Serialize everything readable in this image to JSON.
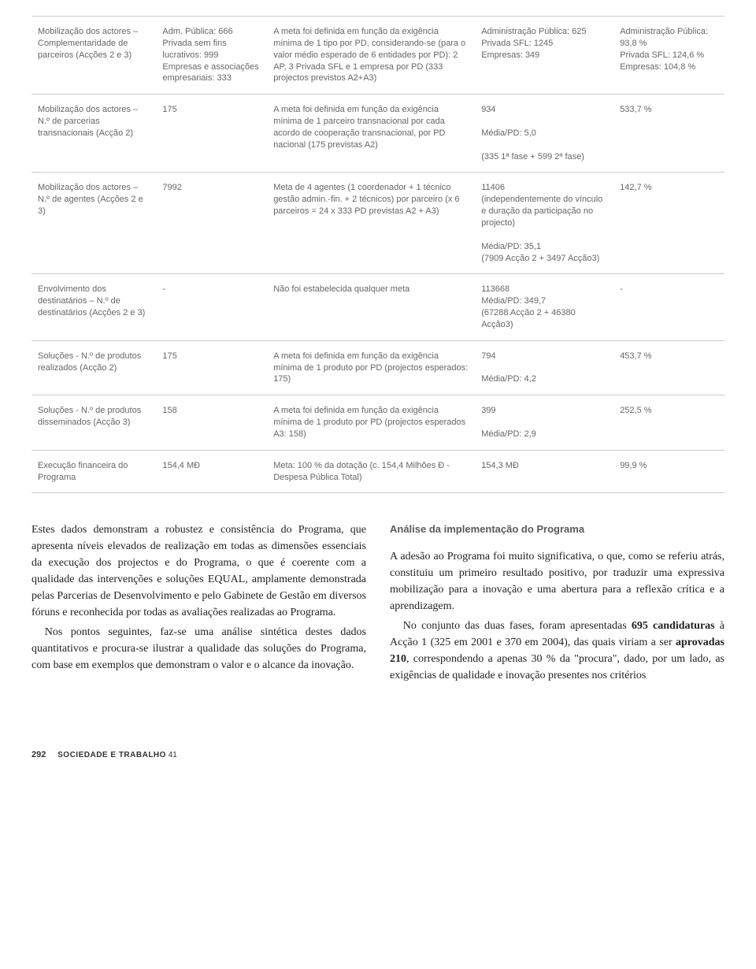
{
  "table": {
    "rows": [
      {
        "c1": "Mobilização dos actores – Complementaridade de parceiros (Acções 2 e 3)",
        "c2": "Adm. Pública: 666\nPrivada sem fins lucrativos: 999\nEmpresas e associações empresariais: 333",
        "c3": "A meta foi definida em função da exigência mínima de 1 tipo por PD, considerando-se (para o valor médio esperado de 6 entidades por PD): 2 AP, 3 Privada SFL e 1 empresa por PD (333 projectos previstos A2+A3)",
        "c4": "Administração Pública: 625\nPrivada SFL: 1245\nEmpresas: 349",
        "c5": "Administração Pública: 93,8 %\nPrivada SFL: 124,6 %\nEmpresas: 104,8 %"
      },
      {
        "c1": "Mobilização dos actores – N.º de parcerias transnacionais (Acção 2)",
        "c2": "175",
        "c3": "A meta foi definida em função da exigência mínima de 1 parceiro transnacional por cada acordo de cooperação transnacional, por PD nacional (175 previstas A2)",
        "c4": "934\n\nMédia/PD: 5,0\n\n(335 1ª fase + 599 2ª fase)",
        "c5": "533,7 %"
      },
      {
        "c1": "Mobilização dos actores – N.º de agentes (Acções 2 e 3)",
        "c2": "7992",
        "c3": "Meta de 4 agentes (1 coordenador + 1 técnico gestão admin.-fin. + 2 técnicos) por parceiro (x 6 parceiros = 24 x 333 PD previstas A2 + A3)",
        "c4": "11406\n(independentemente do vínculo e duração da participação no projecto)\n\nMédia/PD: 35,1\n(7909 Acção 2 + 3497 Acção3)",
        "c5": "142,7 %"
      },
      {
        "c1": "Envolvimento dos destinatários – N.º de destinatários (Acções 2 e 3)",
        "c2": "-",
        "c3": "Não foi estabelecida qualquer meta",
        "c4": "113668\nMédia/PD: 349,7\n(67288 Acção 2 + 46380 Acção3)",
        "c5": "-"
      },
      {
        "c1": "Soluções - N.º de produtos realizados (Acção 2)",
        "c2": "175",
        "c3": "A meta foi definida em função da exigência mínima de 1 produto por PD (projectos esperados: 175)",
        "c4": "794\n\nMédia/PD: 4,2",
        "c5": "453,7 %"
      },
      {
        "c1": "Soluções - N.º de produtos disseminados (Acção 3)",
        "c2": "158",
        "c3": "A meta foi definida em função da exigência mínima de 1 produto por PD (projectos esperados A3: 158)",
        "c4": "399\n\nMédia/PD: 2,9",
        "c5": "252,5 %"
      },
      {
        "c1": "Execução financeira do Programa",
        "c2": "154,4 MÐ",
        "c3": "Meta: 100 % da dotação (c. 154,4 Milhões Ð - Despesa Pública Total)",
        "c4": "154,3 MÐ",
        "c5": "99,9 %"
      }
    ]
  },
  "body": {
    "left": {
      "p1": "Estes dados demonstram a robustez e consistência do Programa, que apresenta níveis elevados de realização em todas as dimensões essenciais da execução dos projectos e do Programa, o que é coerente com a qualidade das intervenções e soluções EQUAL, amplamente demonstrada pelas Parcerias de Desenvolvimento e pelo Gabinete de Gestão em diversos fóruns e reconhecida por todas as avaliações realizadas ao Programa.",
      "p2": "Nos pontos seguintes, faz-se uma análise sintética destes dados quantitativos e procura-se ilustrar a qualidade das soluções do Programa, com base em exemplos que demonstram o valor e o alcance da inovação."
    },
    "right": {
      "heading": "Análise da implementação do Programa",
      "p1": "A adesão ao Programa foi muito significativa, o que, como se referiu atrás, constituiu um primeiro resultado positivo, por traduzir uma expressiva mobilização para a inovação e uma abertura para a reflexão crítica e a aprendizagem.",
      "p2_a": "No conjunto das duas fases, foram apresentadas ",
      "p2_b": "695 candidaturas",
      "p2_c": " à Acção 1 (325 em 2001 e 370 em 2004), das quais viriam a ser ",
      "p2_d": "aprovadas 210",
      "p2_e": ", correspondendo a apenas 30 % da \"procura\", dado, por um lado, as exigências de qualidade e inovação presentes nos critérios"
    }
  },
  "footer": {
    "pagenum": "292",
    "pubname": "SOCIEDADE E TRABALHO",
    "pubno": " 41"
  }
}
